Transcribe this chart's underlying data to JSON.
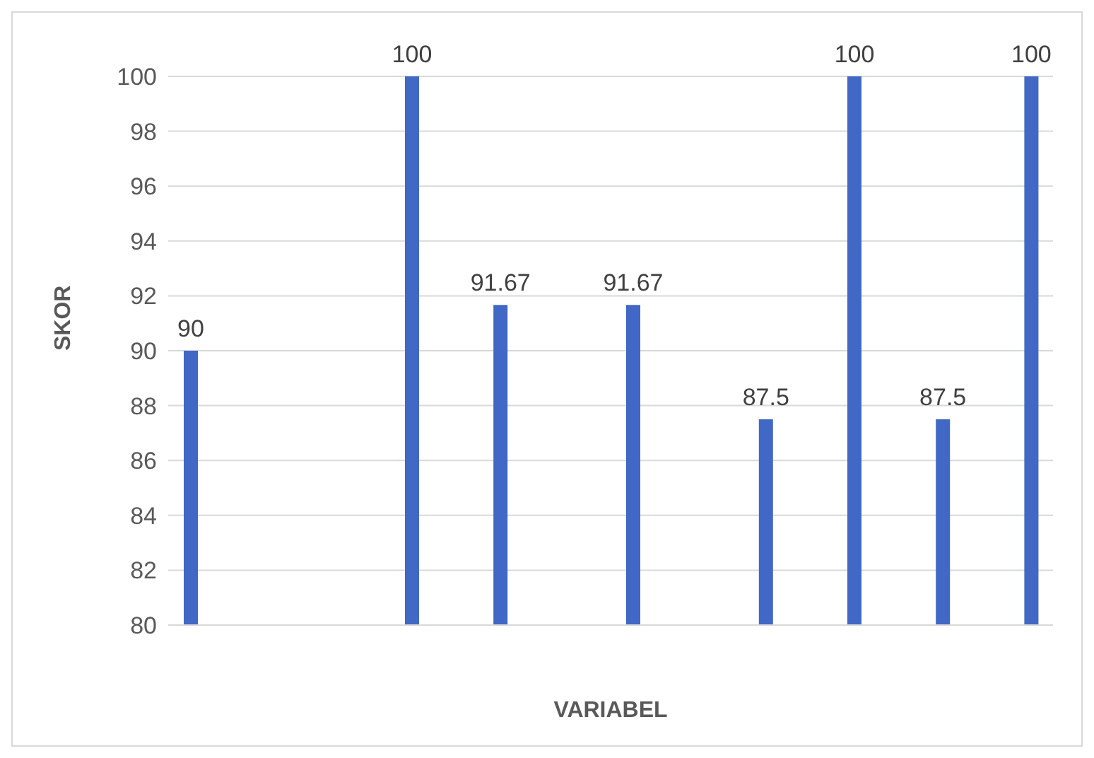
{
  "chart_data": {
    "type": "bar",
    "xlabel": "VARIABEL",
    "ylabel": "SKOR",
    "categories": [
      null,
      null,
      null,
      null,
      null,
      null,
      null,
      null,
      null,
      null,
      null,
      null,
      null,
      null,
      null,
      null,
      null,
      null,
      null,
      null
    ],
    "values": [
      90,
      null,
      null,
      null,
      null,
      100,
      null,
      91.67,
      null,
      null,
      91.67,
      null,
      null,
      87.5,
      null,
      100,
      null,
      87.5,
      null,
      100
    ],
    "color": "#4068c4",
    "ylim": [
      80,
      100
    ],
    "yticks": [
      80,
      82,
      84,
      86,
      88,
      90,
      92,
      94,
      96,
      98,
      100
    ],
    "grid": "y",
    "data_labels": true
  }
}
